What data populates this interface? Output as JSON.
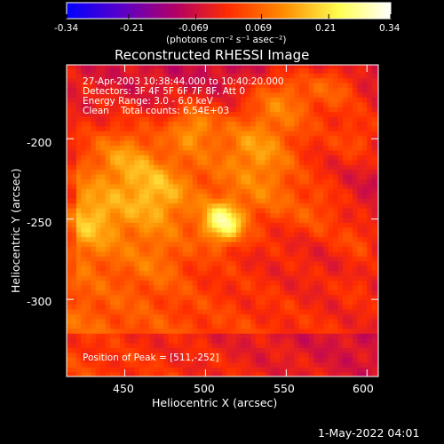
{
  "chart_data": {
    "type": "heatmap",
    "title": "Reconstructed RHESSI Image",
    "xlabel": "Heliocentric X (arcsec)",
    "ylabel": "Heliocentric Y (arcsec)",
    "xlim": [
      414,
      607
    ],
    "ylim": [
      -348,
      -154
    ],
    "x_ticks": [
      "450",
      "500",
      "550",
      "600"
    ],
    "y_ticks": [
      "-200",
      "-250",
      "-300"
    ],
    "colorbar": {
      "ticks": [
        "-0.34",
        "-0.21",
        "-0.069",
        "0.069",
        "0.21",
        "0.34"
      ],
      "range": [
        -0.34,
        0.34
      ],
      "unit_label": "(photons cm⁻² s⁻¹ asec⁻²)",
      "colors": [
        "#0000ff",
        "#5a00c8",
        "#b40064",
        "#ff2d00",
        "#ff8c00",
        "#ffff50",
        "#ffffff"
      ]
    },
    "info": {
      "time": "27-Apr-2003 10:38:44.000 to 10:40:20.000",
      "detectors": "Detectors: 3F 4F 5F 6F 7F 8F, Att 0",
      "energy": "Energy Range: 3.0 - 6.0 keV",
      "method": "Clean    Total counts: 6.54E+03",
      "peak": "Position of Peak = [511,-252]"
    },
    "peak": [
      511,
      -252
    ],
    "footer": "1-May-2022 04:01"
  }
}
